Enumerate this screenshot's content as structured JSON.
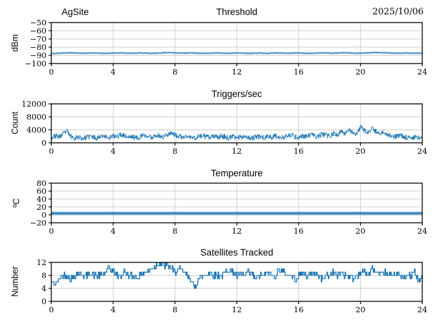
{
  "figure": {
    "background": "#ffffff",
    "accent_color": "#1f77b4",
    "grid_color": "#c9c9c9",
    "spine_color": "#000000"
  },
  "header": {
    "site_label": "AgSite",
    "date_label": "2025/10/06"
  },
  "chart_data": [
    {
      "id": "threshold",
      "type": "line",
      "title_left": "AgSite",
      "title": "Threshold",
      "title_right": "2025/10/06",
      "ylabel": "dBm",
      "xlim": [
        0,
        24
      ],
      "ylim": [
        -100,
        -50
      ],
      "yticks": [
        -50,
        -60,
        -70,
        -80,
        -90,
        -100
      ],
      "xticks": [
        0,
        4,
        8,
        12,
        16,
        20,
        24
      ],
      "grid": true,
      "line_color": "#1f77b4",
      "line_width": 1.1,
      "band_width": 3,
      "band_opacity": 0.3,
      "noise": {
        "amplitude": 0.3,
        "subsamples": 8,
        "seed": 11
      },
      "values": [
        -88.0,
        -87.6,
        -87.4,
        -87.2,
        -87.0,
        -86.9,
        -87.0,
        -87.2,
        -87.4,
        -87.3,
        -87.2,
        -87.0,
        -87.3,
        -87.5,
        -87.6,
        -87.4,
        -87.2,
        -87.1,
        -87.0,
        -87.2,
        -87.3,
        -87.4,
        -87.2,
        -87.0,
        -87.1,
        -87.3,
        -87.5,
        -87.4,
        -87.2,
        -86.8,
        -86.6,
        -86.7,
        -86.9,
        -87.1,
        -87.3,
        -87.2,
        -87.0,
        -87.1,
        -87.3,
        -87.4,
        -87.5,
        -87.3,
        -87.1,
        -87.0,
        -87.2,
        -87.4,
        -87.3,
        -87.1,
        -87.0,
        -87.2,
        -87.3,
        -87.5,
        -87.4,
        -87.2,
        -87.1,
        -87.3,
        -87.4,
        -87.2,
        -87.0,
        -87.1,
        -87.2,
        -87.4,
        -87.3,
        -87.1,
        -87.0,
        -87.2,
        -87.4,
        -87.5,
        -87.3,
        -87.1,
        -86.9,
        -87.0,
        -87.2,
        -87.3,
        -87.1,
        -86.9,
        -86.8,
        -87.0,
        -87.2,
        -87.4,
        -87.3,
        -87.1,
        -86.9,
        -86.7,
        -86.5,
        -86.6,
        -86.8,
        -87.0,
        -87.2,
        -87.3,
        -87.4,
        -87.2,
        -87.1,
        -87.3,
        -87.4,
        -87.3,
        -87.2
      ]
    },
    {
      "id": "triggers",
      "type": "line",
      "title": "Triggers/sec",
      "ylabel": "Count",
      "xlim": [
        0,
        24
      ],
      "ylim": [
        0,
        12000
      ],
      "yticks": [
        0,
        4000,
        8000,
        12000
      ],
      "xticks": [
        0,
        4,
        8,
        12,
        16,
        20,
        24
      ],
      "grid": true,
      "line_color": "#1f77b4",
      "line_width": 0.9,
      "clamp": [
        150,
        12000
      ],
      "noise": {
        "amplitude": 800,
        "subsamples": 10,
        "seed": 23
      },
      "values": [
        1500,
        2200,
        1800,
        2600,
        3600,
        2000,
        1500,
        1800,
        1400,
        1600,
        2000,
        1700,
        1500,
        2400,
        1900,
        1600,
        2100,
        1800,
        2600,
        2200,
        1700,
        1900,
        1500,
        1800,
        2300,
        2000,
        1600,
        2500,
        2100,
        1800,
        2600,
        3200,
        2400,
        1900,
        1600,
        2000,
        1700,
        1500,
        1900,
        2200,
        1800,
        1600,
        2000,
        1700,
        2100,
        1800,
        1500,
        1900,
        1600,
        1800,
        2100,
        1700,
        1500,
        1800,
        2000,
        1600,
        1900,
        1700,
        2200,
        1800,
        1600,
        2000,
        2300,
        1900,
        1700,
        2100,
        1800,
        2500,
        2200,
        1900,
        2700,
        2300,
        2000,
        2800,
        2500,
        3400,
        2900,
        4200,
        3100,
        2600,
        4700,
        3800,
        3000,
        4300,
        3500,
        2800,
        3300,
        2600,
        2200,
        1900,
        2300,
        2000,
        1700,
        1500,
        1800,
        1600,
        2000
      ]
    },
    {
      "id": "temperature",
      "type": "line",
      "title": "Temperature",
      "ylabel": "ºC",
      "xlim": [
        0,
        24
      ],
      "ylim": [
        -20,
        80
      ],
      "yticks": [
        -20,
        0,
        20,
        40,
        60,
        80
      ],
      "xticks": [
        0,
        4,
        8,
        12,
        16,
        20,
        24
      ],
      "grid": true,
      "line_color": "#1f77b4",
      "line_width": 2.2,
      "band_width": 6,
      "band_opacity": 0.35,
      "noise": {
        "amplitude": 0,
        "subsamples": 1,
        "seed": 5
      },
      "values": [
        4,
        4
      ]
    },
    {
      "id": "satellites",
      "type": "step",
      "title": "Satellites Tracked",
      "ylabel": "Number",
      "xlim": [
        0,
        24
      ],
      "ylim": [
        0,
        12
      ],
      "yticks": [
        0,
        4,
        8,
        12
      ],
      "xticks": [
        0,
        4,
        8,
        12,
        16,
        20,
        24
      ],
      "grid": true,
      "line_color": "#1f77b4",
      "line_width": 1.3,
      "round": true,
      "clamp": [
        0,
        12
      ],
      "noise": {
        "amplitude": 0.9,
        "subsamples": 6,
        "seed": 42
      },
      "values": [
        6,
        5,
        7,
        8,
        8,
        7,
        8,
        9,
        8,
        8,
        9,
        8,
        8,
        8,
        9,
        10,
        9,
        8,
        8,
        9,
        8,
        8,
        7,
        8,
        9,
        9,
        10,
        11,
        12,
        11,
        11,
        10,
        9,
        10,
        9,
        8,
        7,
        4,
        7,
        8,
        8,
        9,
        8,
        8,
        8,
        9,
        10,
        9,
        8,
        8,
        8,
        9,
        8,
        7,
        8,
        8,
        9,
        8,
        8,
        10,
        9,
        8,
        8,
        7,
        8,
        9,
        8,
        8,
        9,
        8,
        7,
        8,
        8,
        9,
        8,
        9,
        8,
        8,
        7,
        8,
        9,
        9,
        8,
        10,
        9,
        8,
        9,
        8,
        8,
        9,
        8,
        7,
        8,
        8,
        9,
        6,
        7
      ]
    }
  ]
}
